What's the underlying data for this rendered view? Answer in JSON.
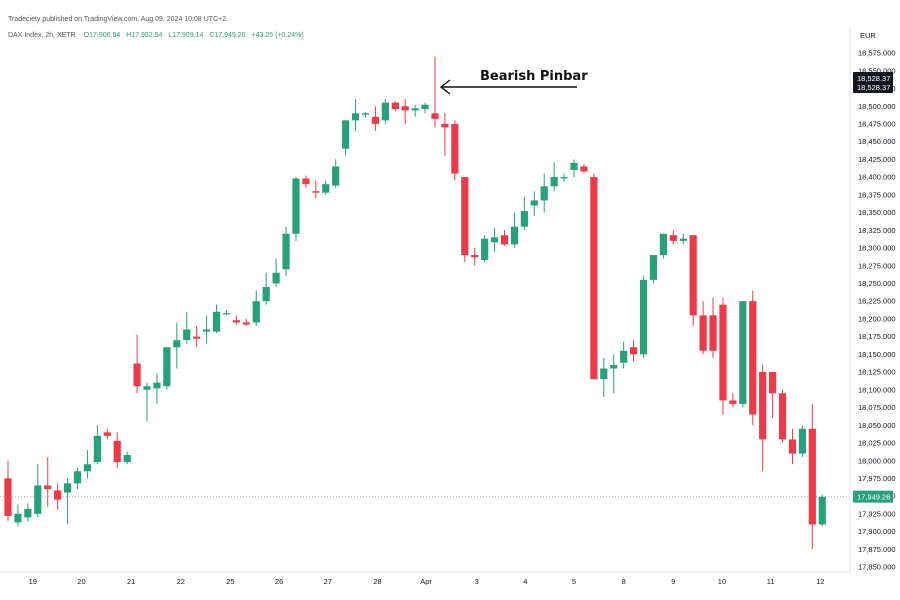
{
  "header": {
    "publisher_line": "Tradeciety published on TradingView.com, Aug 09, 2024 10:08 UTC+2",
    "symbol_line": "DAX Index, 2h, XETR",
    "ohlc": {
      "open": "O17,906.54",
      "high": "H17,952.54",
      "low": "L17,909.14",
      "close": "C17,949.26",
      "change": "+43.25 (+0.24%)"
    }
  },
  "currency": "EUR",
  "price_tags": {
    "tag1": "18,528.37",
    "tag2": "18,528.37",
    "last": "17,949.26"
  },
  "colors": {
    "up": "#26a17b",
    "down": "#ee3a48",
    "last_line": "#b2b5be",
    "tag_dark": "#131722",
    "tag_green": "#26a17b"
  },
  "chart_data": {
    "type": "candlestick",
    "title": "",
    "xlabel": "",
    "ylabel": "",
    "ylim": [
      17850,
      18575
    ],
    "y_ticks": [
      17850,
      17875,
      17900,
      17925,
      17950,
      17975,
      18000,
      18025,
      18050,
      18075,
      18100,
      18125,
      18150,
      18175,
      18200,
      18225,
      18250,
      18275,
      18300,
      18325,
      18350,
      18375,
      18400,
      18425,
      18450,
      18475,
      18500,
      18525,
      18550,
      18575
    ],
    "x_labels": [
      {
        "label": "19",
        "index": 2.5
      },
      {
        "label": "20",
        "index": 7.4
      },
      {
        "label": "21",
        "index": 12.4
      },
      {
        "label": "22",
        "index": 17.4
      },
      {
        "label": "25",
        "index": 22.4
      },
      {
        "label": "26",
        "index": 27.3
      },
      {
        "label": "27",
        "index": 32.2
      },
      {
        "label": "28",
        "index": 37.2
      },
      {
        "label": "Apr",
        "index": 42.1
      },
      {
        "label": "3",
        "index": 47.2
      },
      {
        "label": "4",
        "index": 52.1
      },
      {
        "label": "5",
        "index": 57.0
      },
      {
        "label": "8",
        "index": 62.0
      },
      {
        "label": "9",
        "index": 67.0
      },
      {
        "label": "10",
        "index": 71.9
      },
      {
        "label": "11",
        "index": 76.8
      },
      {
        "label": "12",
        "index": 81.8
      }
    ],
    "candles": [
      {
        "o": 17975,
        "h": 18000,
        "l": 17915,
        "c": 17922
      },
      {
        "o": 17913,
        "h": 17938,
        "l": 17907,
        "c": 17925
      },
      {
        "o": 17920,
        "h": 17940,
        "l": 17914,
        "c": 17932
      },
      {
        "o": 17925,
        "h": 17995,
        "l": 17920,
        "c": 17965
      },
      {
        "o": 17965,
        "h": 18005,
        "l": 17935,
        "c": 17960
      },
      {
        "o": 17958,
        "h": 17968,
        "l": 17930,
        "c": 17945
      },
      {
        "o": 17955,
        "h": 17975,
        "l": 17910,
        "c": 17968
      },
      {
        "o": 17968,
        "h": 17990,
        "l": 17960,
        "c": 17985
      },
      {
        "o": 17985,
        "h": 18015,
        "l": 17975,
        "c": 17995
      },
      {
        "o": 17998,
        "h": 18050,
        "l": 17995,
        "c": 18035
      },
      {
        "o": 18040,
        "h": 18045,
        "l": 18030,
        "c": 18035
      },
      {
        "o": 18028,
        "h": 18040,
        "l": 17990,
        "c": 17998
      },
      {
        "o": 17998,
        "h": 18013,
        "l": 17995,
        "c": 18008
      },
      {
        "o": 18137,
        "h": 18178,
        "l": 18095,
        "c": 18105
      },
      {
        "o": 18100,
        "h": 18110,
        "l": 18055,
        "c": 18105
      },
      {
        "o": 18102,
        "h": 18123,
        "l": 18080,
        "c": 18110
      },
      {
        "o": 18105,
        "h": 18160,
        "l": 18100,
        "c": 18160
      },
      {
        "o": 18160,
        "h": 18195,
        "l": 18130,
        "c": 18170
      },
      {
        "o": 18170,
        "h": 18210,
        "l": 18165,
        "c": 18185
      },
      {
        "o": 18175,
        "h": 18190,
        "l": 18160,
        "c": 18172
      },
      {
        "o": 18182,
        "h": 18205,
        "l": 18165,
        "c": 18185
      },
      {
        "o": 18182,
        "h": 18220,
        "l": 18180,
        "c": 18210
      },
      {
        "o": 18207,
        "h": 18212,
        "l": 18205,
        "c": 18208
      },
      {
        "o": 18198,
        "h": 18205,
        "l": 18192,
        "c": 18195
      },
      {
        "o": 18195,
        "h": 18200,
        "l": 18190,
        "c": 18192
      },
      {
        "o": 18195,
        "h": 18240,
        "l": 18190,
        "c": 18225
      },
      {
        "o": 18225,
        "h": 18265,
        "l": 18220,
        "c": 18245
      },
      {
        "o": 18250,
        "h": 18285,
        "l": 18245,
        "c": 18265
      },
      {
        "o": 18270,
        "h": 18330,
        "l": 18260,
        "c": 18320
      },
      {
        "o": 18320,
        "h": 18400,
        "l": 18310,
        "c": 18398
      },
      {
        "o": 18398,
        "h": 18402,
        "l": 18385,
        "c": 18390
      },
      {
        "o": 18380,
        "h": 18395,
        "l": 18370,
        "c": 18378
      },
      {
        "o": 18378,
        "h": 18395,
        "l": 18375,
        "c": 18390
      },
      {
        "o": 18388,
        "h": 18425,
        "l": 18385,
        "c": 18415
      },
      {
        "o": 18440,
        "h": 18480,
        "l": 18430,
        "c": 18480
      },
      {
        "o": 18480,
        "h": 18510,
        "l": 18465,
        "c": 18490
      },
      {
        "o": 18488,
        "h": 18492,
        "l": 18484,
        "c": 18490
      },
      {
        "o": 18485,
        "h": 18500,
        "l": 18465,
        "c": 18475
      },
      {
        "o": 18480,
        "h": 18510,
        "l": 18475,
        "c": 18505
      },
      {
        "o": 18505,
        "h": 18507,
        "l": 18493,
        "c": 18496
      },
      {
        "o": 18500,
        "h": 18510,
        "l": 18475,
        "c": 18494
      },
      {
        "o": 18494,
        "h": 18502,
        "l": 18485,
        "c": 18497
      },
      {
        "o": 18496,
        "h": 18505,
        "l": 18490,
        "c": 18502
      },
      {
        "o": 18490,
        "h": 18570,
        "l": 18470,
        "c": 18482
      },
      {
        "o": 18475,
        "h": 18490,
        "l": 18430,
        "c": 18470
      },
      {
        "o": 18475,
        "h": 18480,
        "l": 18395,
        "c": 18405
      },
      {
        "o": 18400,
        "h": 18400,
        "l": 18280,
        "c": 18290
      },
      {
        "o": 18290,
        "h": 18300,
        "l": 18275,
        "c": 18287
      },
      {
        "o": 18283,
        "h": 18318,
        "l": 18280,
        "c": 18313
      },
      {
        "o": 18308,
        "h": 18328,
        "l": 18295,
        "c": 18315
      },
      {
        "o": 18318,
        "h": 18325,
        "l": 18303,
        "c": 18305
      },
      {
        "o": 18305,
        "h": 18350,
        "l": 18300,
        "c": 18330
      },
      {
        "o": 18330,
        "h": 18372,
        "l": 18325,
        "c": 18352
      },
      {
        "o": 18360,
        "h": 18380,
        "l": 18345,
        "c": 18367
      },
      {
        "o": 18367,
        "h": 18405,
        "l": 18350,
        "c": 18387
      },
      {
        "o": 18387,
        "h": 18420,
        "l": 18380,
        "c": 18400
      },
      {
        "o": 18398,
        "h": 18405,
        "l": 18393,
        "c": 18400
      },
      {
        "o": 18410,
        "h": 18425,
        "l": 18400,
        "c": 18420
      },
      {
        "o": 18415,
        "h": 18418,
        "l": 18405,
        "c": 18408
      },
      {
        "o": 18400,
        "h": 18405,
        "l": 18115,
        "c": 18115
      },
      {
        "o": 18115,
        "h": 18145,
        "l": 18090,
        "c": 18130
      },
      {
        "o": 18130,
        "h": 18150,
        "l": 18095,
        "c": 18135
      },
      {
        "o": 18138,
        "h": 18168,
        "l": 18130,
        "c": 18155
      },
      {
        "o": 18160,
        "h": 18170,
        "l": 18140,
        "c": 18150
      },
      {
        "o": 18150,
        "h": 18260,
        "l": 18145,
        "c": 18255
      },
      {
        "o": 18255,
        "h": 18290,
        "l": 18250,
        "c": 18290
      },
      {
        "o": 18290,
        "h": 18320,
        "l": 18285,
        "c": 18320
      },
      {
        "o": 18318,
        "h": 18325,
        "l": 18305,
        "c": 18310
      },
      {
        "o": 18310,
        "h": 18320,
        "l": 18305,
        "c": 18313
      },
      {
        "o": 18318,
        "h": 18318,
        "l": 18190,
        "c": 18205
      },
      {
        "o": 18205,
        "h": 18225,
        "l": 18150,
        "c": 18155
      },
      {
        "o": 18205,
        "h": 18230,
        "l": 18145,
        "c": 18155
      },
      {
        "o": 18220,
        "h": 18230,
        "l": 18065,
        "c": 18085
      },
      {
        "o": 18085,
        "h": 18095,
        "l": 18075,
        "c": 18080
      },
      {
        "o": 18080,
        "h": 18225,
        "l": 18075,
        "c": 18225
      },
      {
        "o": 18225,
        "h": 18240,
        "l": 18050,
        "c": 18065
      },
      {
        "o": 18125,
        "h": 18135,
        "l": 17985,
        "c": 18030
      },
      {
        "o": 18125,
        "h": 18125,
        "l": 18060,
        "c": 18095
      },
      {
        "o": 18095,
        "h": 18100,
        "l": 18025,
        "c": 18030
      },
      {
        "o": 18030,
        "h": 18045,
        "l": 17995,
        "c": 18010
      },
      {
        "o": 18010,
        "h": 18050,
        "l": 18005,
        "c": 18045
      },
      {
        "o": 18045,
        "h": 18080,
        "l": 17875,
        "c": 17910
      },
      {
        "o": 17910,
        "h": 17952,
        "l": 17908,
        "c": 17949
      }
    ],
    "last_price": 17949.26,
    "annotations": [
      {
        "text": "Bearish Pinbar",
        "candle_index": 43
      }
    ]
  }
}
